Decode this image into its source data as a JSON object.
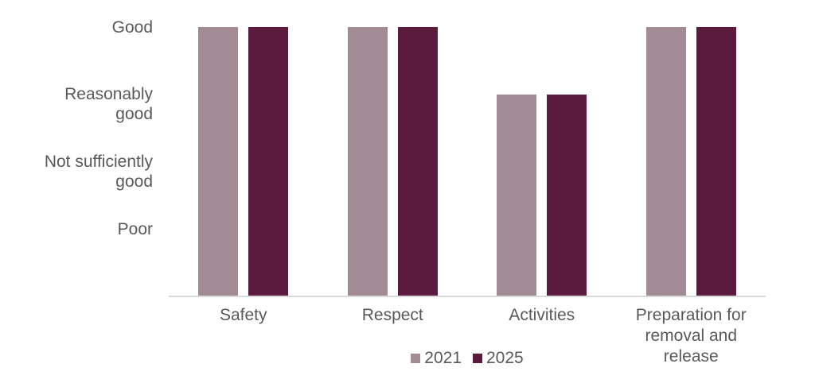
{
  "chart_data": {
    "type": "bar",
    "categories": [
      "Safety",
      "Respect",
      "Activities",
      "Preparation for removal and release"
    ],
    "category_label_lines": [
      [
        "Safety"
      ],
      [
        "Respect"
      ],
      [
        "Activities"
      ],
      [
        "Preparation for",
        "removal and",
        "release"
      ]
    ],
    "series": [
      {
        "name": "2021",
        "color": "#a28b94",
        "values": [
          4,
          4,
          3,
          4
        ],
        "levels": [
          "Good",
          "Good",
          "Reasonably good",
          "Good"
        ]
      },
      {
        "name": "2025",
        "color": "#5d1a3f",
        "values": [
          4,
          4,
          3,
          4
        ],
        "levels": [
          "Good",
          "Good",
          "Reasonably good",
          "Good"
        ]
      }
    ],
    "y_axis": {
      "min": 0,
      "max": 4,
      "ticks": [
        {
          "value": 4,
          "lines": [
            "Good"
          ]
        },
        {
          "value": 3,
          "lines": [
            "Reasonably",
            "good"
          ]
        },
        {
          "value": 2,
          "lines": [
            "Not sufficiently",
            "good"
          ]
        },
        {
          "value": 1,
          "lines": [
            "Poor"
          ]
        }
      ]
    },
    "legend": {
      "position": "bottom",
      "entries": [
        {
          "label": "2021",
          "color": "#a28b94"
        },
        {
          "label": "2025",
          "color": "#5d1a3f"
        }
      ]
    },
    "grid": false,
    "axis_line_color": "#d9d9d9",
    "text_color": "#595959",
    "background": "#ffffff"
  }
}
